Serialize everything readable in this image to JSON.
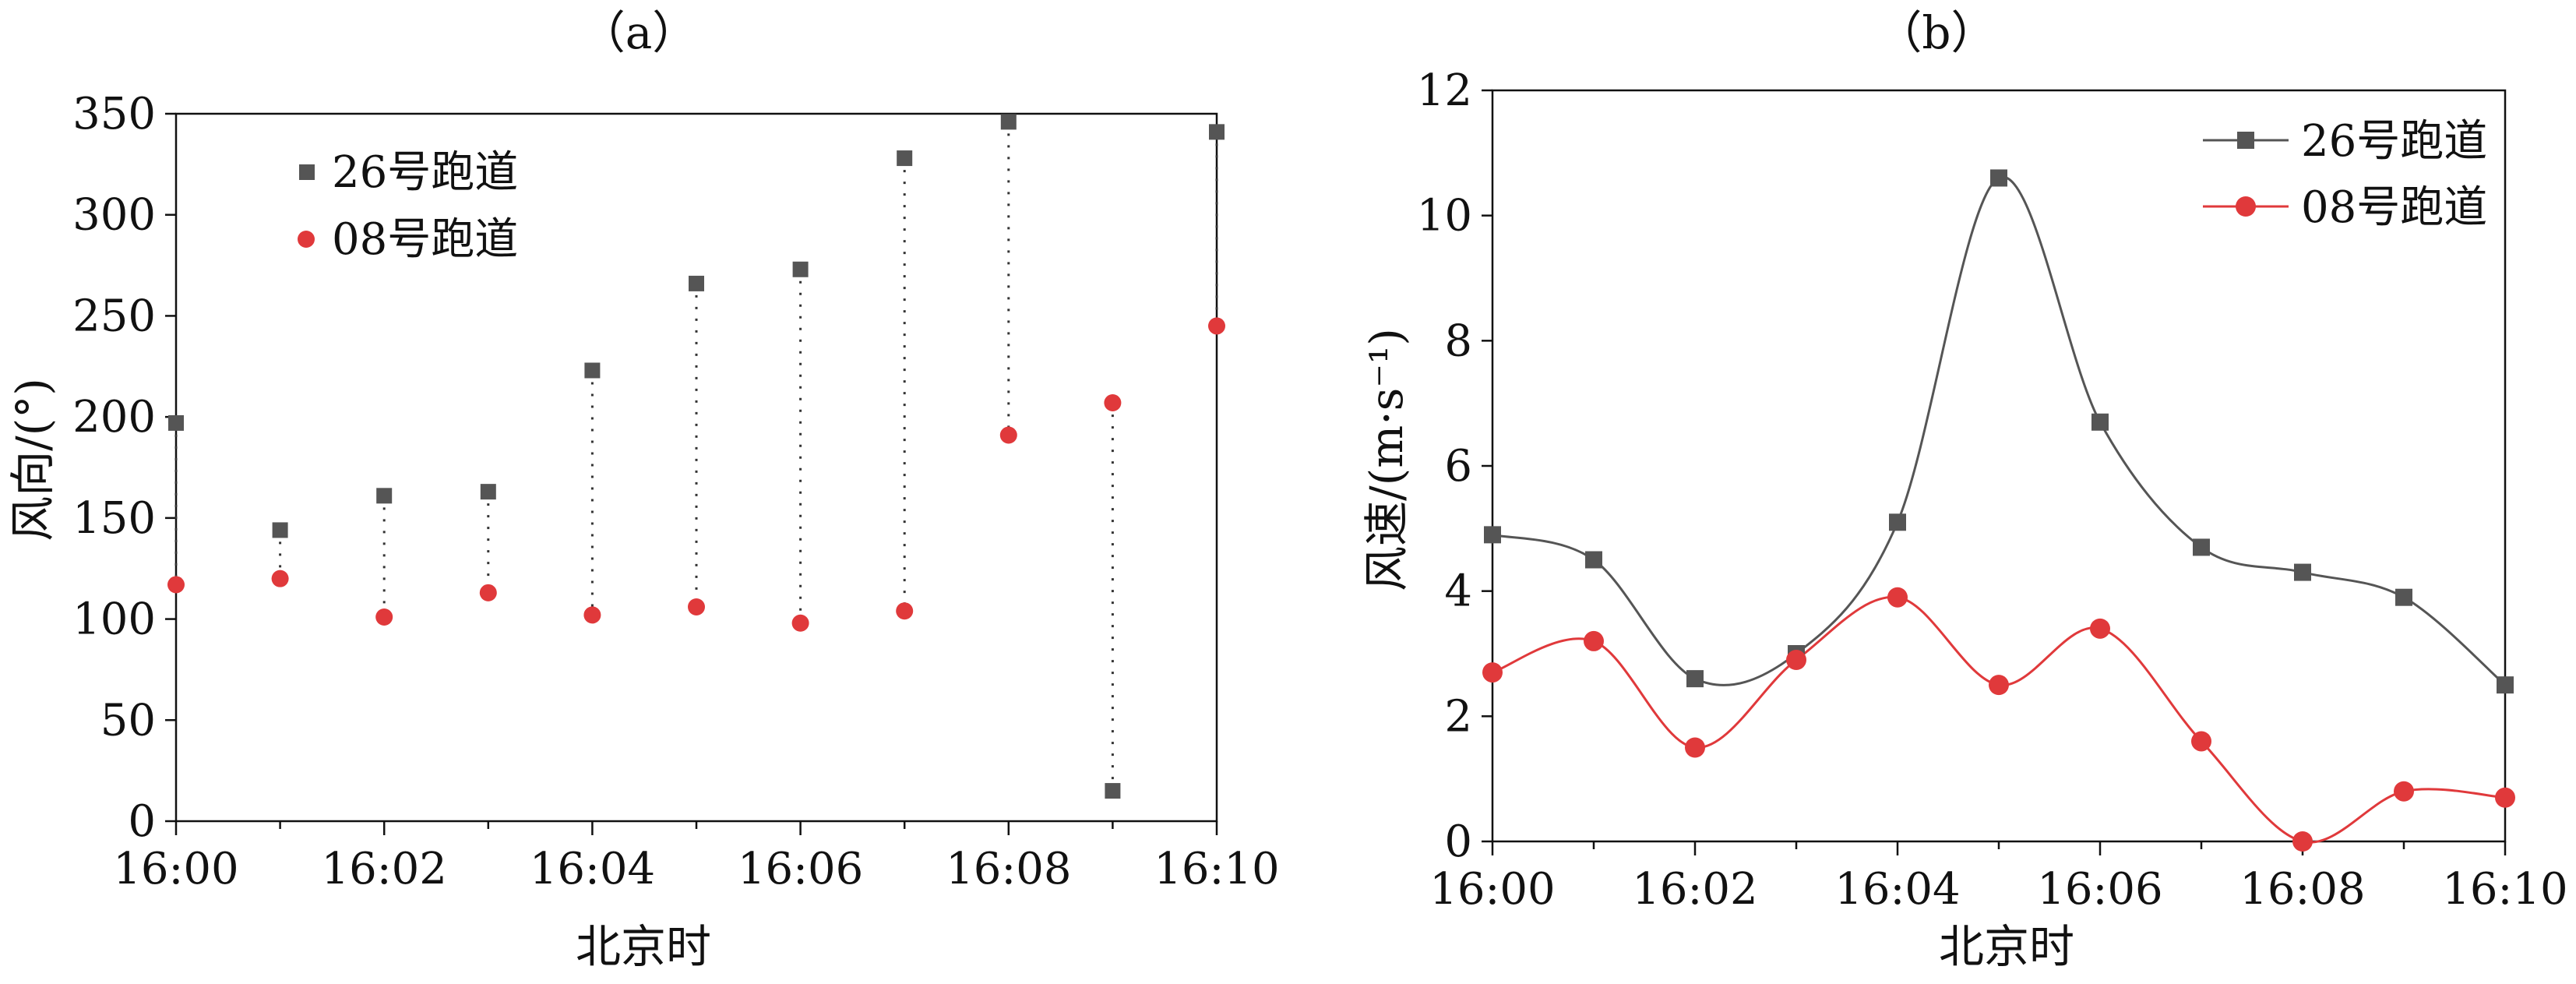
{
  "chart_data": [
    {
      "type": "scatter",
      "panel_label": "（a）",
      "xlabel": "北京时",
      "ylabel": "风向/(°)",
      "x_ticks": [
        "16:00",
        "16:02",
        "16:04",
        "16:06",
        "16:08",
        "16:10"
      ],
      "x_minutes": [
        0,
        1,
        2,
        3,
        4,
        5,
        6,
        7,
        8,
        9,
        10
      ],
      "xlim": [
        0,
        10
      ],
      "ylim": [
        0,
        350
      ],
      "y_ticks": [
        0,
        50,
        100,
        150,
        200,
        250,
        300,
        350
      ],
      "legend_position": "top-left",
      "dotted_connectors": true,
      "series": [
        {
          "name": "26号跑道",
          "color": "#555555",
          "marker": "square",
          "values": [
            197,
            144,
            161,
            163,
            223,
            266,
            273,
            328,
            346,
            15,
            341
          ]
        },
        {
          "name": "08号跑道",
          "color": "#e0393b",
          "marker": "circle",
          "values": [
            117,
            120,
            101,
            113,
            102,
            106,
            98,
            104,
            191,
            207,
            245
          ]
        }
      ]
    },
    {
      "type": "line",
      "panel_label": "（b）",
      "xlabel": "北京时",
      "ylabel": "风速/(m·s⁻¹)",
      "x_ticks": [
        "16:00",
        "16:02",
        "16:04",
        "16:06",
        "16:08",
        "16:10"
      ],
      "x_minutes": [
        0,
        1,
        2,
        3,
        4,
        5,
        6,
        7,
        8,
        9,
        10
      ],
      "xlim": [
        0,
        10
      ],
      "ylim": [
        0,
        12
      ],
      "y_ticks": [
        0,
        2,
        4,
        6,
        8,
        10,
        12
      ],
      "legend_position": "top-right",
      "smooth": true,
      "series": [
        {
          "name": "26号跑道",
          "color": "#555555",
          "marker": "square",
          "values": [
            4.9,
            4.5,
            2.6,
            3.0,
            5.1,
            10.6,
            6.7,
            4.7,
            4.3,
            3.9,
            2.5
          ]
        },
        {
          "name": "08号跑道",
          "color": "#e0393b",
          "marker": "circle",
          "values": [
            2.7,
            3.2,
            1.5,
            2.9,
            3.9,
            2.5,
            3.4,
            1.6,
            0.0,
            0.8,
            0.7
          ]
        }
      ]
    }
  ]
}
